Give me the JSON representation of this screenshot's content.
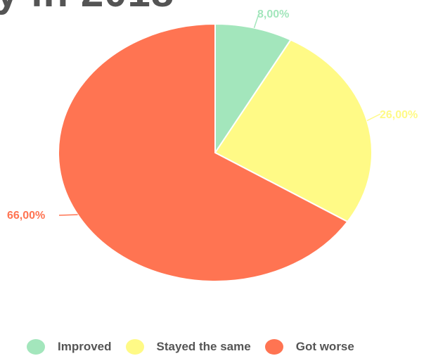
{
  "header": {
    "title_fragment": "y in 2018"
  },
  "chart_data": {
    "type": "pie",
    "start_angle_deg": 0,
    "direction": "clockwise",
    "slices": [
      {
        "name": "Improved",
        "value": 8.0,
        "label": "8,00%",
        "color": "#a3e6bc"
      },
      {
        "name": "Stayed the same",
        "value": 26.0,
        "label": "26,00%",
        "color": "#fffa86"
      },
      {
        "name": "Got worse",
        "value": 66.0,
        "label": "66,00%",
        "color": "#ff7452"
      }
    ],
    "legend": {
      "position": "bottom",
      "entries": [
        "Improved",
        "Stayed the same",
        "Got worse"
      ]
    },
    "label_style": "outside-with-leader-lines"
  }
}
